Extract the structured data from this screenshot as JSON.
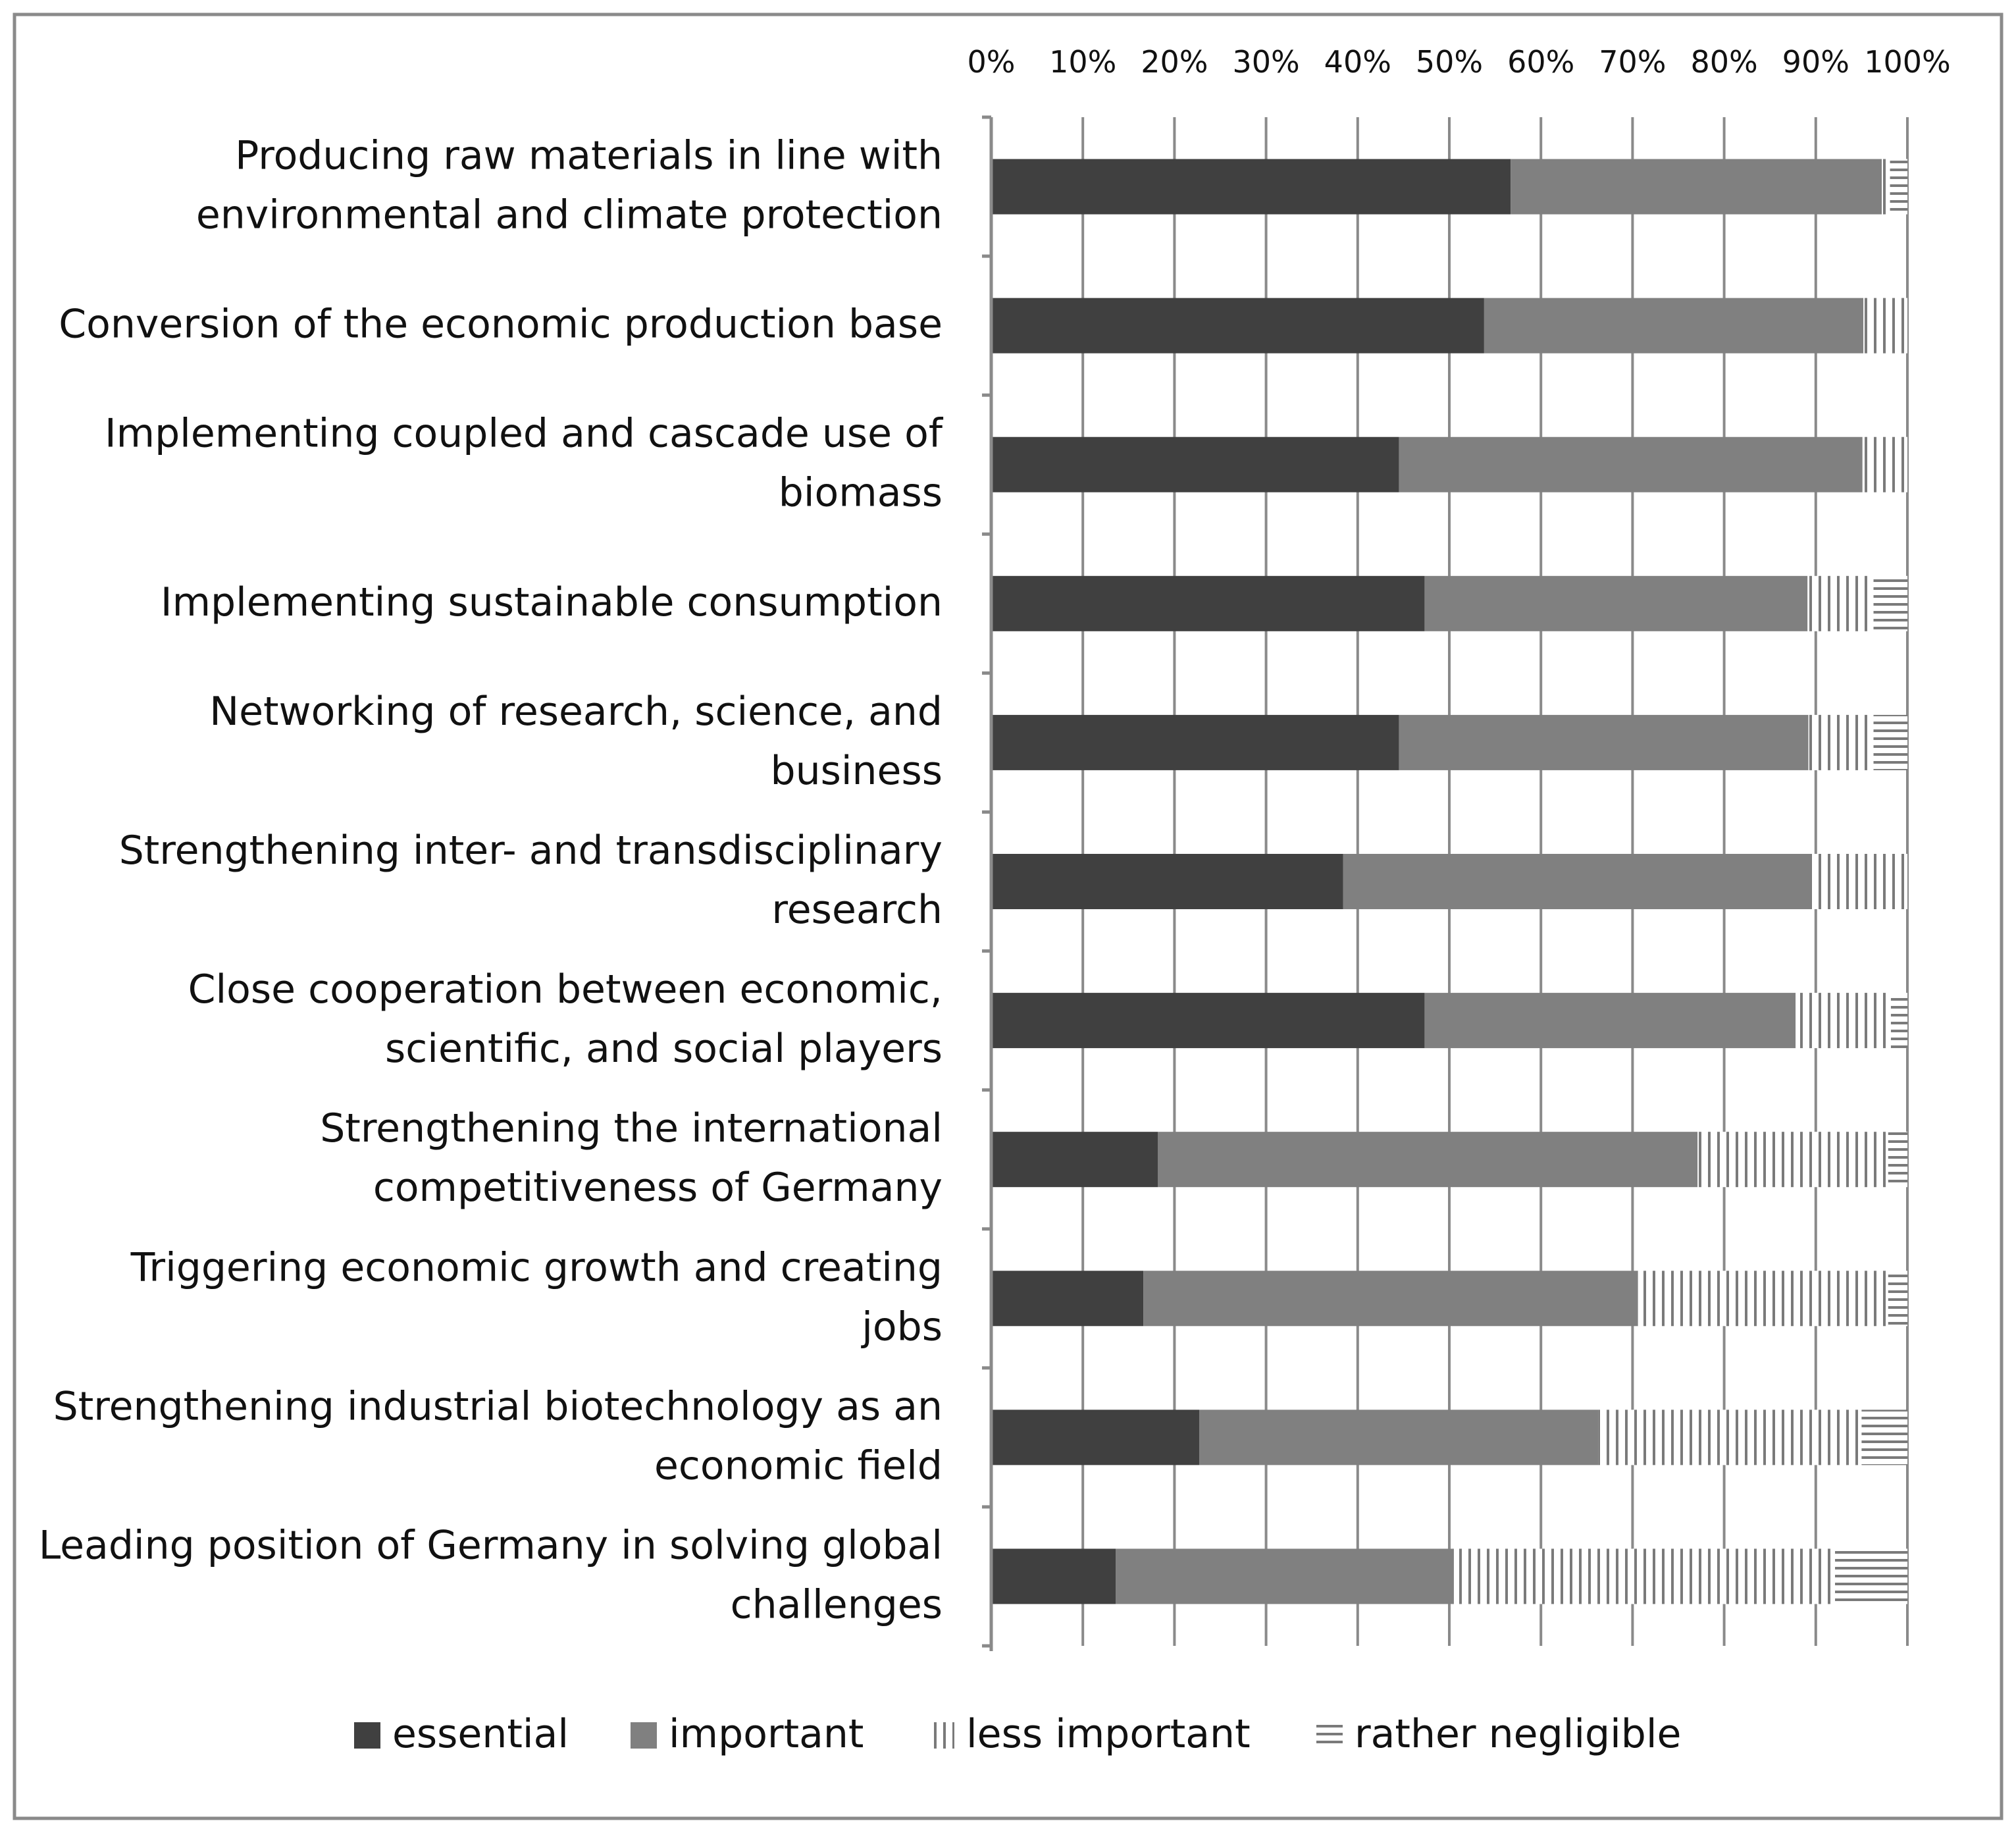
{
  "chart_data": {
    "type": "bar",
    "orientation": "horizontal",
    "stacked": true,
    "percent_stacked": true,
    "title": "",
    "xlabel": "",
    "ylabel": "",
    "xlim": [
      0,
      100
    ],
    "x_ticks": [
      "0%",
      "10%",
      "20%",
      "30%",
      "40%",
      "50%",
      "60%",
      "70%",
      "80%",
      "90%",
      "100%"
    ],
    "x_axis_position": "top",
    "grid": true,
    "legend_position": "bottom",
    "categories": [
      [
        "Producing raw materials in line with",
        "environmental and climate protection"
      ],
      [
        "Conversion of the economic production base"
      ],
      [
        "Implementing coupled and cascade use of",
        "biomass"
      ],
      [
        "Implementing sustainable consumption"
      ],
      [
        "Networking of research, science, and",
        "business"
      ],
      [
        "Strengthening inter- and transdisciplinary",
        "research"
      ],
      [
        "Close cooperation between economic,",
        "scientific, and social players"
      ],
      [
        "Strengthening the international",
        "competitiveness of Germany"
      ],
      [
        "Triggering economic growth and creating",
        "jobs"
      ],
      [
        "Strengthening industrial biotechnology as an",
        "economic field"
      ],
      [
        "Leading position of Germany in solving global",
        "challenges"
      ]
    ],
    "series": [
      {
        "name": "essential",
        "color": "#404040",
        "pattern": "solid",
        "values": [
          56.7,
          53.8,
          44.5,
          47.3,
          44.5,
          38.4,
          47.3,
          18.2,
          16.6,
          22.7,
          13.6
        ]
      },
      {
        "name": "important",
        "color": "#808080",
        "pattern": "solid",
        "values": [
          40.5,
          41.4,
          50.6,
          41.8,
          44.7,
          51.0,
          40.5,
          58.9,
          54.0,
          43.6,
          36.9
        ]
      },
      {
        "name": "less important",
        "color": "#7a7a7a",
        "pattern": "vertical-lines",
        "values": [
          0.9,
          4.8,
          4.9,
          7.2,
          7.1,
          10.6,
          10.4,
          20.8,
          27.3,
          28.7,
          41.6
        ]
      },
      {
        "name": "rather negligible",
        "color": "#7a7a7a",
        "pattern": "horizontal-lines",
        "values": [
          1.9,
          0,
          0,
          3.7,
          3.7,
          0,
          1.8,
          2.1,
          2.1,
          5.0,
          7.9
        ]
      }
    ]
  }
}
